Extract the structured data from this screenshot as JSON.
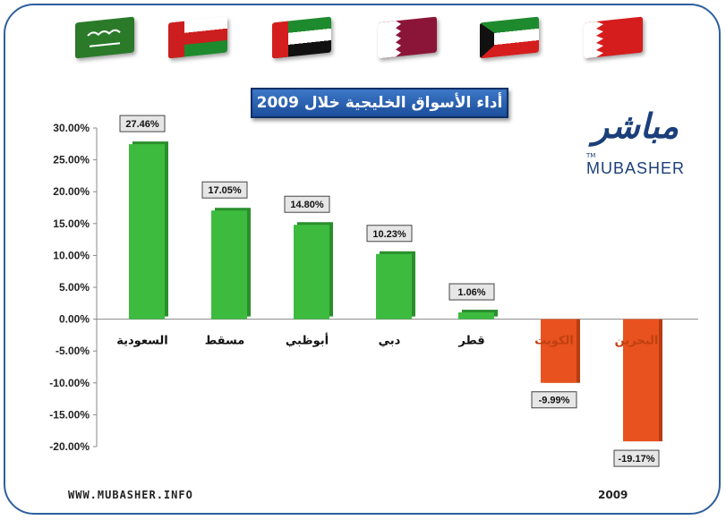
{
  "footer": {
    "website": "WWW.MUBASHER.INFO",
    "year": "2009"
  },
  "logo": {
    "arabic": "مباشر",
    "english": "MUBASHER",
    "tm": "TM"
  },
  "flags": [
    {
      "name": "saudi-arabia-flag",
      "colors": [
        "#2a7a2a"
      ]
    },
    {
      "name": "oman-flag",
      "colors": [
        "#cc1e1e",
        "#ffffff",
        "#1e8a2e"
      ]
    },
    {
      "name": "uae-flag",
      "colors": [
        "#d51d1d",
        "#1e8a2e",
        "#ffffff",
        "#111111"
      ]
    },
    {
      "name": "qatar-flag",
      "colors": [
        "#ffffff",
        "#8b1538"
      ]
    },
    {
      "name": "kuwait-flag",
      "colors": [
        "#1e8a2e",
        "#ffffff",
        "#d51d1d",
        "#111111"
      ]
    },
    {
      "name": "bahrain-flag",
      "colors": [
        "#ffffff",
        "#d51d1d"
      ]
    }
  ],
  "colors": {
    "positive": "#3dbb3f",
    "negative": "#e8521f",
    "title_bg": "#2a62b0"
  },
  "chart_data": {
    "type": "bar",
    "title": "أداء الأسواق الخليجية خلال 2009",
    "categories": [
      "السعودية",
      "مسقط",
      "أبوظبي",
      "دبي",
      "قطر",
      "الكويت",
      "البحرين"
    ],
    "values": [
      27.46,
      17.05,
      14.8,
      10.23,
      1.06,
      -9.99,
      -19.17
    ],
    "data_labels": [
      "27.46%",
      "17.05%",
      "14.80%",
      "10.23%",
      "1.06%",
      "-9.99%",
      "-19.17%"
    ],
    "ylim": [
      -20,
      30
    ],
    "yticks": [
      30,
      25,
      20,
      15,
      10,
      5,
      0,
      -5,
      -10,
      -15,
      -20
    ],
    "ytick_labels": [
      "30.00%",
      "25.00%",
      "20.00%",
      "15.00%",
      "10.00%",
      "5.00%",
      "0.00%",
      "-5.00%",
      "-10.00%",
      "-15.00%",
      "-20.00%"
    ],
    "grid": false
  }
}
